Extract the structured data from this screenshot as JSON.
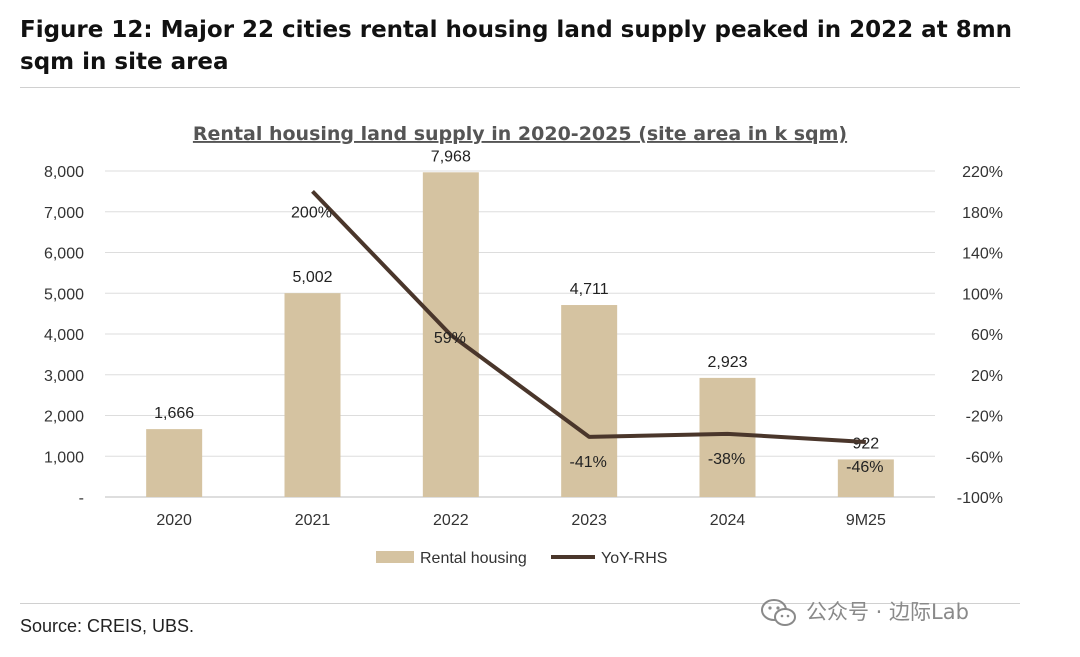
{
  "figure": {
    "title": "Figure 12: Major 22 cities rental housing land supply peaked in 2022 at 8mn sqm in site area",
    "source": "Source: CREIS, UBS.",
    "watermark": "公众号 · 边际Lab"
  },
  "colors": {
    "bar": "#D5C3A1",
    "line": "#4A362B",
    "grid": "#DDDDDD"
  },
  "chart_data": {
    "type": "bar",
    "title": "Rental housing land supply in 2020-2025 (site area in k sqm)",
    "categories": [
      "2020",
      "2021",
      "2022",
      "2023",
      "2024",
      "9M25"
    ],
    "series": [
      {
        "name": "Rental housing",
        "type": "bar",
        "axis": "left",
        "values": [
          1666,
          5002,
          7968,
          4711,
          2923,
          922
        ],
        "labels": [
          "1,666",
          "5,002",
          "7,968",
          "4,711",
          "2,923",
          "922"
        ]
      },
      {
        "name": "YoY-RHS",
        "type": "line",
        "axis": "right",
        "values": [
          null,
          200,
          59,
          -41,
          -38,
          -46
        ],
        "labels": [
          "",
          "200%",
          "59%",
          "-41%",
          "-38%",
          "-46%"
        ]
      }
    ],
    "y_left": {
      "min": 0,
      "max": 8000,
      "ticks": [
        0,
        1000,
        2000,
        3000,
        4000,
        5000,
        6000,
        7000,
        8000
      ],
      "tick_labels": [
        "-",
        "1,000",
        "2,000",
        "3,000",
        "4,000",
        "5,000",
        "6,000",
        "7,000",
        "8,000"
      ]
    },
    "y_right": {
      "min": -100,
      "max": 220,
      "ticks": [
        -100,
        -60,
        -20,
        20,
        60,
        100,
        140,
        180,
        220
      ],
      "tick_labels": [
        "-100%",
        "-60%",
        "-20%",
        "20%",
        "60%",
        "100%",
        "140%",
        "180%",
        "220%"
      ]
    },
    "grid": true,
    "legend": [
      "Rental housing",
      "YoY-RHS"
    ],
    "legend_position": "bottom"
  }
}
